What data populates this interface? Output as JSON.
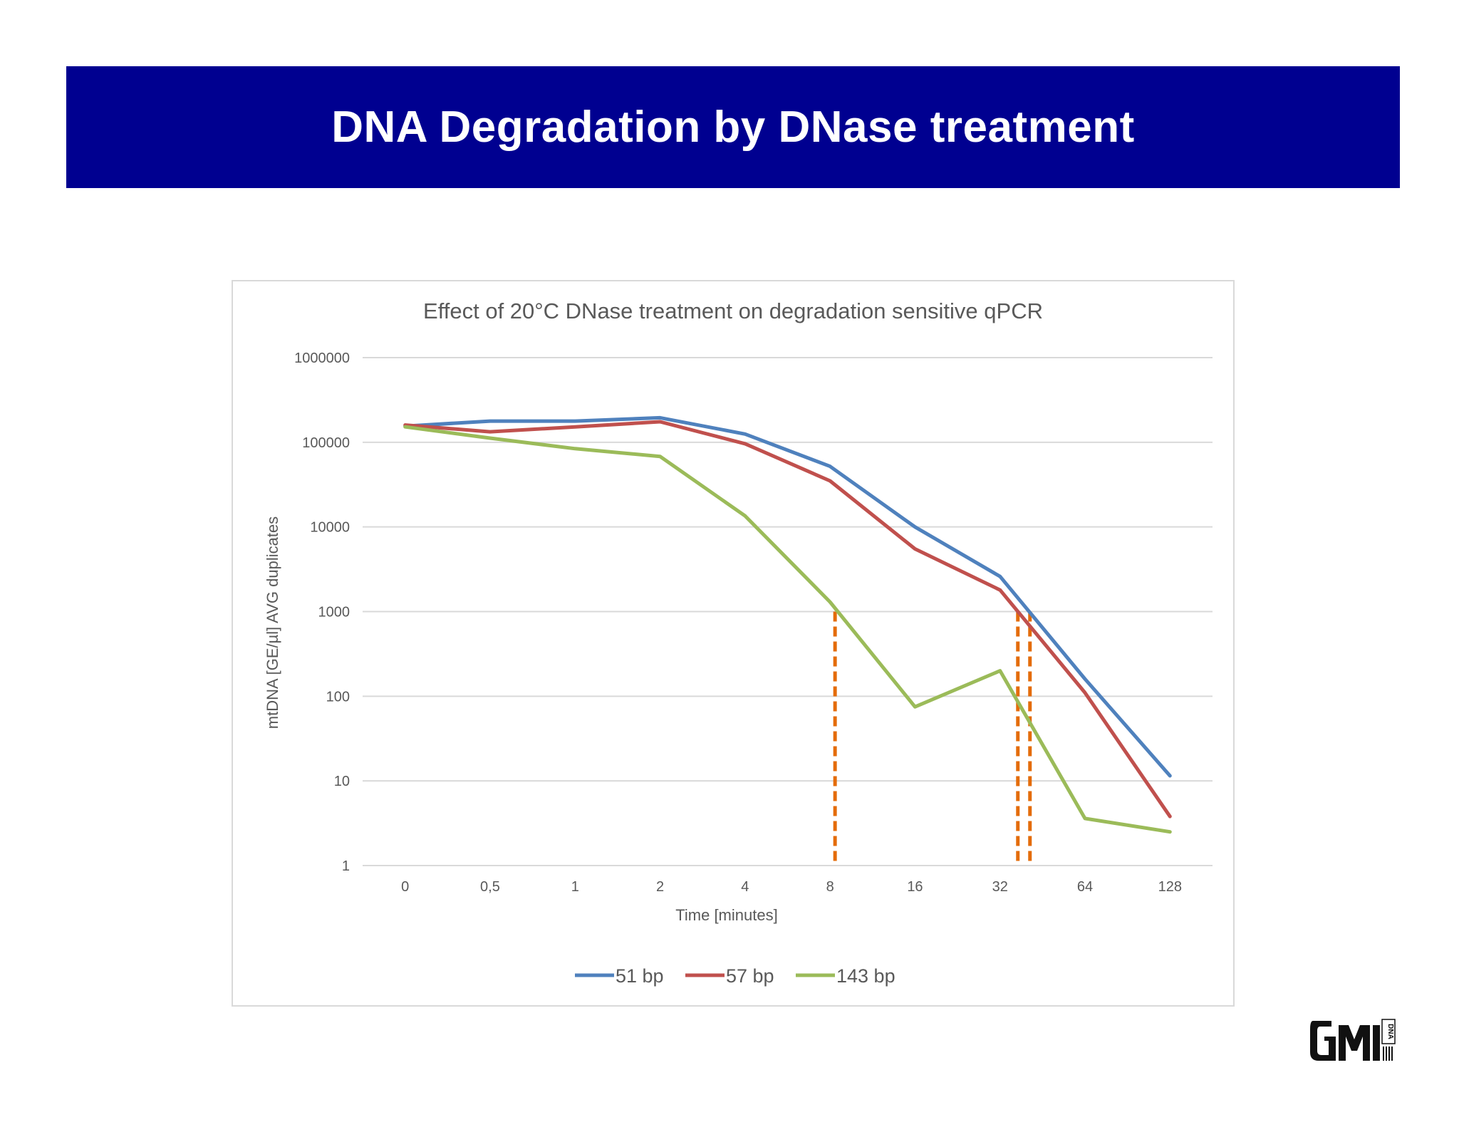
{
  "slide": {
    "title": "DNA Degradation by DNase treatment"
  },
  "chart_data": {
    "type": "line",
    "title": "Effect of 20°C DNase treatment on degradation sensitive qPCR",
    "xlabel": "Time [minutes]",
    "ylabel": "mtDNA [GE/µl] AVG duplicates",
    "categories": [
      "0",
      "0,5",
      "1",
      "2",
      "4",
      "8",
      "16",
      "32",
      "64",
      "128"
    ],
    "y_scale": "log",
    "ylim": [
      1,
      1000000
    ],
    "y_ticks": [
      "1",
      "10",
      "100",
      "1000",
      "10000",
      "100000",
      "1000000"
    ],
    "grid": true,
    "legend_position": "bottom",
    "series": [
      {
        "name": "51 bp",
        "color": "#4f81bd",
        "values": [
          155000,
          178000,
          178000,
          195000,
          125000,
          52000,
          10000,
          2600,
          160,
          11.5
        ]
      },
      {
        "name": "57 bp",
        "color": "#c0504d",
        "values": [
          160000,
          133000,
          152000,
          175000,
          96000,
          35000,
          5500,
          1800,
          110,
          3.8
        ]
      },
      {
        "name": "143 bp",
        "color": "#9bbb59",
        "values": [
          152000,
          112000,
          84000,
          68000,
          13500,
          1300,
          75,
          200,
          3.6,
          2.5
        ]
      }
    ],
    "annotations": {
      "color": "#e46c0a",
      "style": "dashed",
      "vertical_lines": [
        {
          "x": "8",
          "y_top": 1000
        },
        {
          "x": "32",
          "y_top": 1000
        },
        {
          "x": "32",
          "y_top": 1000
        }
      ]
    }
  },
  "logo": {
    "icon": "gmi-dna-logo",
    "color": "#000000"
  }
}
